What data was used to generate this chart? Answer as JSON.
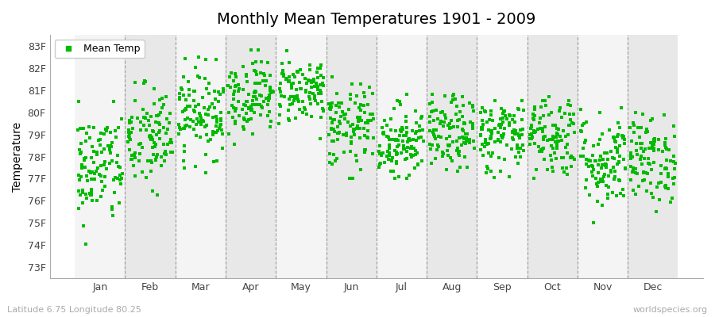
{
  "title": "Monthly Mean Temperatures 1901 - 2009",
  "ylabel": "Temperature",
  "ytick_labels": [
    "73F",
    "74F",
    "75F",
    "76F",
    "77F",
    "78F",
    "79F",
    "80F",
    "81F",
    "82F",
    "83F"
  ],
  "ytick_values": [
    73,
    74,
    75,
    76,
    77,
    78,
    79,
    80,
    81,
    82,
    83
  ],
  "ylim": [
    72.5,
    83.5
  ],
  "xlim": [
    0,
    13
  ],
  "months": [
    "Jan",
    "Feb",
    "Mar",
    "Apr",
    "May",
    "Jun",
    "Jul",
    "Aug",
    "Sep",
    "Oct",
    "Nov",
    "Dec"
  ],
  "month_tick_positions": [
    1,
    2,
    3,
    4,
    5,
    6,
    7,
    8,
    9,
    10,
    11,
    12
  ],
  "month_divider_positions": [
    1.5,
    2.5,
    3.5,
    4.5,
    5.5,
    6.5,
    7.5,
    8.5,
    9.5,
    10.5,
    11.5
  ],
  "month_means": [
    77.5,
    78.8,
    80.0,
    80.8,
    81.0,
    79.3,
    78.7,
    79.0,
    79.0,
    79.0,
    77.8,
    77.9
  ],
  "month_stds": [
    1.3,
    1.2,
    1.0,
    0.85,
    0.75,
    0.95,
    0.85,
    0.85,
    0.85,
    0.95,
    1.1,
    1.0
  ],
  "month_mins": [
    73.0,
    75.0,
    77.0,
    78.5,
    78.8,
    77.0,
    77.0,
    77.0,
    77.0,
    77.0,
    75.0,
    75.5
  ],
  "month_maxs": [
    80.5,
    81.5,
    82.5,
    82.8,
    83.0,
    82.0,
    81.0,
    80.8,
    81.0,
    81.0,
    80.5,
    80.2
  ],
  "n_years": 109,
  "dot_color": "#00bb00",
  "dot_size": 5,
  "bg_even_color": "#f4f4f4",
  "bg_odd_color": "#e8e8e8",
  "legend_label": "Mean Temp",
  "bottom_left_text": "Latitude 6.75 Longitude 80.25",
  "bottom_right_text": "worldspecies.org",
  "title_fontsize": 14,
  "axis_fontsize": 9,
  "ylabel_fontsize": 10,
  "seed": 42
}
